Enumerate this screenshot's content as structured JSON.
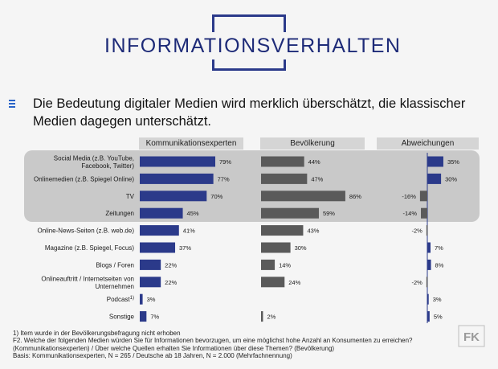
{
  "title": "INFORMATIONSVERHALTEN",
  "headline": "Die Bedeutung digitaler Medien wird merklich überschätzt, die klassischer Medien dagegen unterschätzt.",
  "columns": [
    "Kommunikationsexperten",
    "Bevölkerung",
    "Abweichungen"
  ],
  "footnotes": [
    "1) Item wurde in der Bevölkerungsbefragung nicht erhoben",
    "F2. Welche der folgenden Medien würden Sie für Informationen bevorzugen, um eine möglichst hohe Anzahl an Konsumenten zu erreichen?",
    "(Kommunikationsexperten) / Über welche Quellen erhalten Sie Informationen über diese Themen? (Bevölkerung)",
    "Basis: Kommunikationsexperten, N = 265 / Deutsche ab 18 Jahren, N = 2.000 (Mehrfachnennung)"
  ],
  "colors": {
    "experts": "#2b3a8a",
    "population": "#5a5a5a",
    "accent": "#2a64c8"
  },
  "logo": "FK",
  "chart_data": {
    "type": "bar",
    "categories": [
      [
        "Social Media (z.B. YouTube,",
        "Facebook, Twitter)"
      ],
      [
        "Onlinemedien (z.B. Spiegel Online)"
      ],
      [
        "TV"
      ],
      [
        "Zeitungen"
      ],
      [
        "Online-News-Seiten (z.B. web.de)"
      ],
      [
        "Magazine (z.B. Spiegel, Focus)"
      ],
      [
        "Blogs / Foren"
      ],
      [
        "Onlineauftritt / Internetseiten von",
        "Unternehmen"
      ],
      [
        "Podcast"
      ],
      [
        "Sonstige"
      ]
    ],
    "podcast_sup": "1)",
    "series": [
      {
        "name": "Kommunikationsexperten",
        "values": [
          79,
          77,
          70,
          45,
          41,
          37,
          22,
          22,
          3,
          7
        ]
      },
      {
        "name": "Bevölkerung",
        "values": [
          44,
          47,
          86,
          59,
          43,
          30,
          14,
          24,
          null,
          2
        ]
      },
      {
        "name": "Abweichungen",
        "values": [
          35,
          30,
          -16,
          -14,
          -2,
          7,
          8,
          -2,
          3,
          5
        ]
      }
    ],
    "value_suffix": "%",
    "highlighted_rows": [
      0,
      1,
      2,
      3
    ]
  }
}
